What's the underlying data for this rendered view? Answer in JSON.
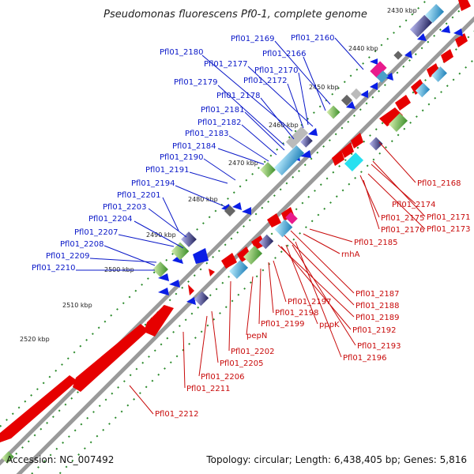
{
  "title": "Pseudomonas fluorescens Pf0-1, complete genome",
  "footer": {
    "accession": "Accession: NC_007492",
    "summary": "Topology: circular; Length: 6,438,405 bp; Genes: 5,816"
  },
  "ticks": [
    "2430 kbp",
    "2440 kbp",
    "2450 kbp",
    "2460 kbp",
    "2470 kbp",
    "2480 kbp",
    "2490 kbp",
    "2500 kbp",
    "2510 kbp",
    "2520 kbp"
  ],
  "labels_blue": [
    "Pfl01_2160",
    "Pfl01_2169",
    "Pfl01_2166",
    "Pfl01_2180",
    "Pfl01_2177",
    "Pfl01_2170",
    "Pfl01_2172",
    "Pfl01_2179",
    "Pfl01_2178",
    "Pfl01_2181",
    "Pfl01_2182",
    "Pfl01_2183",
    "Pfl01_2184",
    "Pfl01_2190",
    "Pfl01_2191",
    "Pfl01_2194",
    "Pfl01_2201",
    "Pfl01_2203",
    "Pfl01_2204",
    "Pfl01_2207",
    "Pfl01_2208",
    "Pfl01_2209",
    "Pfl01_2210"
  ],
  "labels_red": [
    "Pfl01_2168",
    "Pfl01_2174",
    "Pfl01_2171",
    "Pfl01_2175",
    "Pfl01_2173",
    "Pfl01_2176",
    "Pfl01_2185",
    "rnhA",
    "Pfl01_2187",
    "Pfl01_2188",
    "Pfl01_2189",
    "Pfl01_2197",
    "Pfl01_2198",
    "Pfl01_2199",
    "pepN",
    "Pfl01_2192",
    "pppK",
    "Pfl01_2193",
    "Pfl01_2196",
    "Pfl01_2202",
    "Pfl01_2205",
    "Pfl01_2206",
    "Pfl01_2211",
    "Pfl01_2212"
  ],
  "colors": {
    "forward": "#e60000",
    "reverse": "#0a1ee6",
    "backbone": "#8a8a8a",
    "dots": "#2a8a2a",
    "label_blue": "#0a18c8",
    "label_red": "#c80a0a"
  }
}
